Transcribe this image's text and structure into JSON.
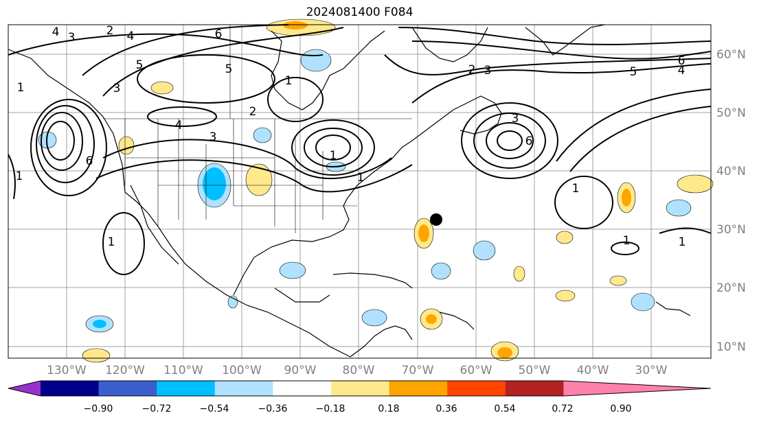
{
  "title": "2024081400 F084",
  "lon_labels": [
    "130°W",
    "120°W",
    "110°W",
    "100°W",
    "90°W",
    "80°W",
    "70°W",
    "60°W",
    "50°W",
    "40°W",
    "30°W"
  ],
  "lat_labels": [
    "60°N",
    "50°N",
    "40°N",
    "30°N",
    "20°N",
    "10°N"
  ],
  "contour_labels": [
    "4",
    "3",
    "2",
    "4",
    "6",
    "1",
    "5",
    "5",
    "3",
    "1",
    "4",
    "6",
    "3",
    "1",
    "2",
    "3",
    "6",
    "5",
    "4",
    "2",
    "3",
    "1",
    "6",
    "1",
    "1",
    "1",
    "1",
    "1"
  ],
  "colorbar": {
    "ticks": [
      "−0.90",
      "−0.72",
      "−0.54",
      "−0.36",
      "−0.18",
      "0.18",
      "0.36",
      "0.54",
      "0.72",
      "0.90"
    ],
    "colors": [
      "#9932cc",
      "#00008b",
      "#3a5fcd",
      "#00bfff",
      "#b0e2ff",
      "#ffffff",
      "#ffe98c",
      "#ffa500",
      "#ff4500",
      "#b22222",
      "#ff82ab"
    ]
  }
}
